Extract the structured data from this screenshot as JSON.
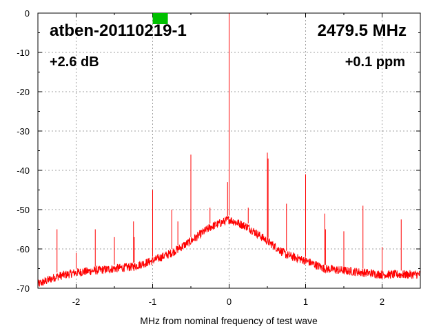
{
  "chart_data": {
    "type": "line",
    "title": "atben-20110219-1",
    "frequency_label": "2479.5 MHz",
    "gain_label": "+2.6 dB",
    "offset_label": "+0.1 ppm",
    "xlabel": "MHz from nominal frequency of test wave",
    "ylabel": "",
    "xlim": [
      -2.5,
      2.5
    ],
    "ylim": [
      -70,
      0
    ],
    "x_ticks": [
      -2,
      -1,
      0,
      1,
      2
    ],
    "y_ticks": [
      0,
      -10,
      -20,
      -30,
      -40,
      -50,
      -60,
      -70
    ],
    "grid": true,
    "grid_style": "dotted",
    "series_color": "#ff0000",
    "indicator_color": "#00c000",
    "indicator_x": -0.9,
    "noise_floor": {
      "x": [
        -2.5,
        -2.25,
        -2.0,
        -1.75,
        -1.5,
        -1.25,
        -1.0,
        -0.75,
        -0.5,
        -0.25,
        0.0,
        0.25,
        0.5,
        0.75,
        1.0,
        1.25,
        1.5,
        1.75,
        2.0,
        2.25,
        2.5
      ],
      "y": [
        -69,
        -67,
        -66,
        -65.5,
        -65,
        -64.5,
        -63,
        -61,
        -58,
        -54.5,
        -52.5,
        -54.5,
        -58,
        -61.5,
        -63,
        -65,
        -65.5,
        -66,
        -66.5,
        -66.5,
        -66.5
      ]
    },
    "spurs": {
      "x": [
        -2.25,
        -2.0,
        -1.75,
        -1.5,
        -1.25,
        -1.24,
        -1.0,
        -0.75,
        -0.67,
        -0.5,
        -0.25,
        -0.02,
        0.0,
        0.25,
        0.5,
        0.51,
        0.75,
        1.0,
        1.25,
        1.26,
        1.5,
        1.75,
        2.0,
        2.25
      ],
      "y": [
        -55,
        -61,
        -55,
        -57,
        -53,
        -57,
        -45,
        -50,
        -53,
        -36,
        -49.5,
        -43,
        0,
        -49.5,
        -35.5,
        -37,
        -48.5,
        -41,
        -51,
        -55,
        -55.5,
        -49,
        -59.5,
        -52.5
      ]
    }
  }
}
